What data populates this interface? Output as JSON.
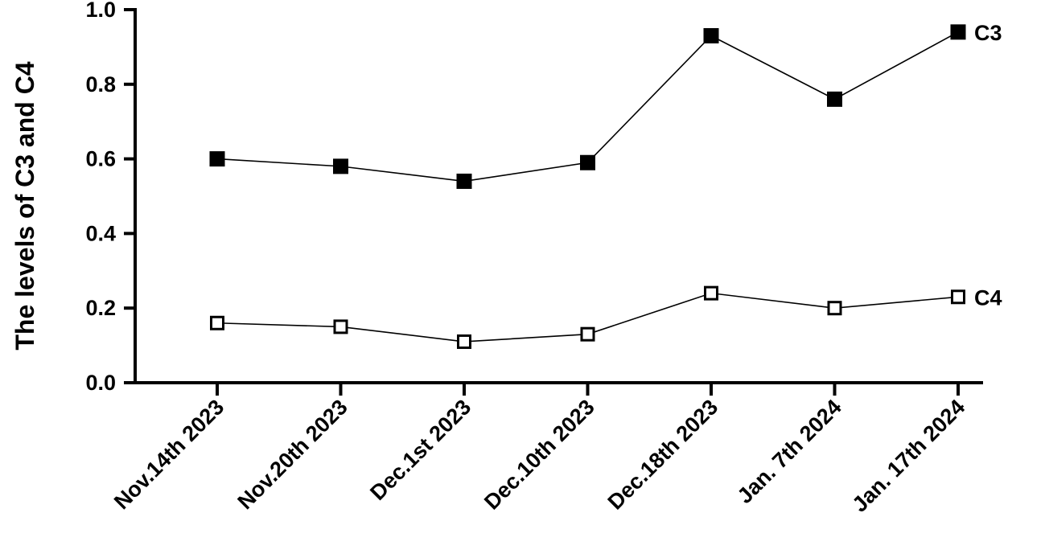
{
  "chart_data": {
    "type": "line",
    "title": "",
    "xlabel": "",
    "ylabel": "The levels of C3 and C4",
    "categories": [
      "Nov.14th 2023",
      "Nov.20th 2023",
      "Dec.1st 2023",
      "Dec.10th 2023",
      "Dec.18th 2023",
      "Jan. 7th 2024",
      "Jan. 17th 2024"
    ],
    "ylim": [
      0,
      1.0
    ],
    "yticks": [
      "0.0",
      "0.2",
      "0.4",
      "0.6",
      "0.8",
      "1.0"
    ],
    "grid": false,
    "legend": "inline-right",
    "series": [
      {
        "name": "C3",
        "marker": "filled-square",
        "color": "#000000",
        "values": [
          0.6,
          0.58,
          0.54,
          0.59,
          0.93,
          0.76,
          0.94
        ]
      },
      {
        "name": "C4",
        "marker": "open-square",
        "color": "#000000",
        "values": [
          0.16,
          0.15,
          0.11,
          0.13,
          0.24,
          0.2,
          0.23
        ]
      }
    ]
  }
}
